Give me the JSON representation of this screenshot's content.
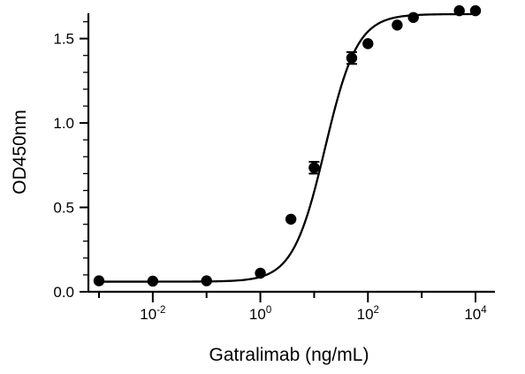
{
  "chart_data": {
    "type": "scatter",
    "xlabel": "Gatralimab (ng/mL)",
    "ylabel": "OD450nm",
    "x_scale": "log10",
    "xlim": [
      0.001,
      10000
    ],
    "ylim": [
      0,
      1.65
    ],
    "x_ticks": [
      {
        "base": "10",
        "exponent": "-2",
        "value": 0.01
      },
      {
        "base": "10",
        "exponent": "0",
        "value": 1
      },
      {
        "base": "10",
        "exponent": "2",
        "value": 100
      },
      {
        "base": "10",
        "exponent": "4",
        "value": 10000
      }
    ],
    "y_ticks": [
      {
        "label": "0.0",
        "value": 0.0
      },
      {
        "label": "0.5",
        "value": 0.5
      },
      {
        "label": "1.0",
        "value": 1.0
      },
      {
        "label": "1.5",
        "value": 1.5
      }
    ],
    "points": [
      {
        "x": 0.001,
        "y": 0.065
      },
      {
        "x": 0.01,
        "y": 0.063
      },
      {
        "x": 0.1,
        "y": 0.065
      },
      {
        "x": 1,
        "y": 0.11
      },
      {
        "x": 3.7,
        "y": 0.43
      },
      {
        "x": 10,
        "y": 0.735,
        "error": 0.035
      },
      {
        "x": 50,
        "y": 1.385,
        "error": 0.035
      },
      {
        "x": 100,
        "y": 1.47
      },
      {
        "x": 350,
        "y": 1.58
      },
      {
        "x": 700,
        "y": 1.625
      },
      {
        "x": 5000,
        "y": 1.665
      },
      {
        "x": 10000,
        "y": 1.665
      }
    ],
    "fit_curve": {
      "model": "4PL",
      "bottom": 0.06,
      "top": 1.645,
      "ec50": 16,
      "hill": 1.45
    },
    "grid": false,
    "legend": false
  }
}
